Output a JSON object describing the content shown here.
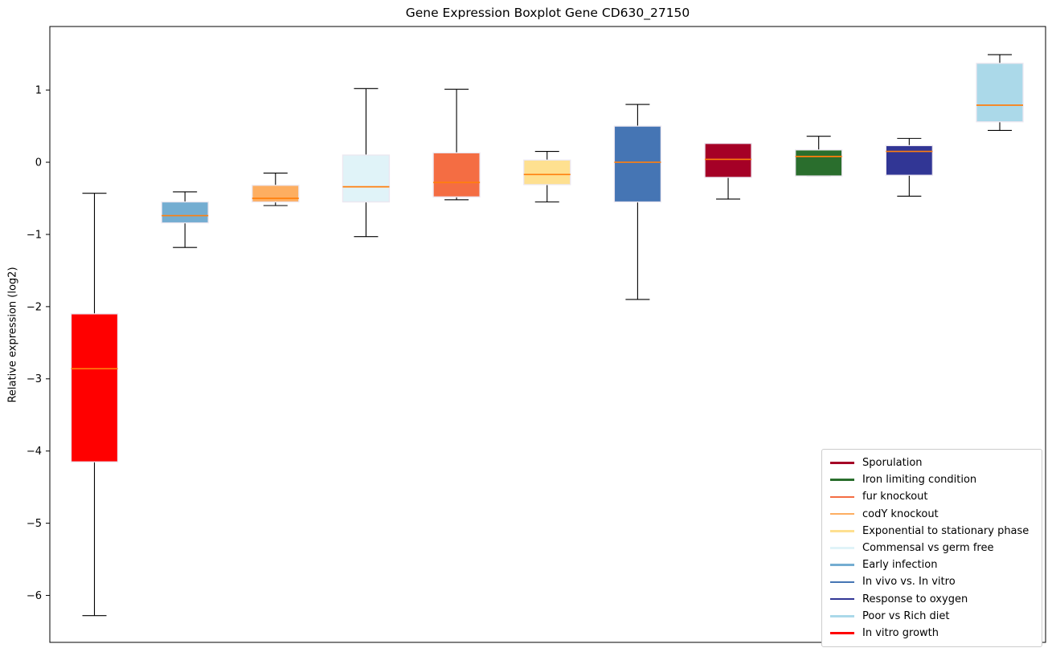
{
  "chart_data": {
    "type": "boxplot",
    "title": "Gene Expression Boxplot Gene CD630_27150",
    "ylabel": "Relative expression (log2)",
    "xlabel": "",
    "ylim": [
      -6.65,
      1.88
    ],
    "yticks": [
      1,
      0,
      -1,
      -2,
      -3,
      -4,
      -5,
      -6
    ],
    "grid": false,
    "legend_position": "lower right",
    "colors": {
      "median_line": "#ff7f0e",
      "whisker": "#000000",
      "box_edge": "#ece7f0",
      "spine": "#000000"
    },
    "series": [
      {
        "name": "In vitro growth",
        "color": "#ff0000",
        "whisker_low": -6.28,
        "q1": -4.15,
        "median": -2.86,
        "q3": -2.1,
        "whisker_high": -0.43
      },
      {
        "name": "Early infection",
        "color": "#74add1",
        "whisker_low": -1.18,
        "q1": -0.84,
        "median": -0.74,
        "q3": -0.55,
        "whisker_high": -0.41
      },
      {
        "name": "codY knockout",
        "color": "#fdae61",
        "whisker_low": -0.6,
        "q1": -0.55,
        "median": -0.5,
        "q3": -0.32,
        "whisker_high": -0.15
      },
      {
        "name": "Commensal vs germ free",
        "color": "#e0f3f8",
        "whisker_low": -1.03,
        "q1": -0.55,
        "median": -0.34,
        "q3": 0.1,
        "whisker_high": 1.02
      },
      {
        "name": "fur knockout",
        "color": "#f46d43",
        "whisker_low": -0.52,
        "q1": -0.48,
        "median": -0.28,
        "q3": 0.13,
        "whisker_high": 1.01
      },
      {
        "name": "Exponential to stationary phase",
        "color": "#fee090",
        "whisker_low": -0.55,
        "q1": -0.31,
        "median": -0.17,
        "q3": 0.03,
        "whisker_high": 0.15
      },
      {
        "name": "In vivo vs. In vitro",
        "color": "#4575b4",
        "whisker_low": -1.9,
        "q1": -0.55,
        "median": 0.0,
        "q3": 0.5,
        "whisker_high": 0.8
      },
      {
        "name": "Sporulation",
        "color": "#a50026",
        "whisker_low": -0.51,
        "q1": -0.21,
        "median": 0.04,
        "q3": 0.26,
        "whisker_high": 0.26
      },
      {
        "name": "Iron limiting condition",
        "color": "#2a6e2d",
        "whisker_low": -0.19,
        "q1": -0.19,
        "median": 0.08,
        "q3": 0.17,
        "whisker_high": 0.36
      },
      {
        "name": "Response to oxygen",
        "color": "#313695",
        "whisker_low": -0.47,
        "q1": -0.18,
        "median": 0.15,
        "q3": 0.23,
        "whisker_high": 0.33
      },
      {
        "name": "Poor vs Rich diet",
        "color": "#abd9e9",
        "whisker_low": 0.44,
        "q1": 0.56,
        "median": 0.79,
        "q3": 1.37,
        "whisker_high": 1.49
      }
    ],
    "legend": [
      {
        "label": "Sporulation",
        "color": "#a50026"
      },
      {
        "label": "Iron limiting condition",
        "color": "#2a6e2d"
      },
      {
        "label": "fur knockout",
        "color": "#f46d43"
      },
      {
        "label": "codY knockout",
        "color": "#fdae61"
      },
      {
        "label": "Exponential to stationary phase",
        "color": "#fee090"
      },
      {
        "label": "Commensal vs germ free",
        "color": "#e0f3f8"
      },
      {
        "label": "Early infection",
        "color": "#74add1"
      },
      {
        "label": "In vivo vs. In vitro",
        "color": "#4575b4"
      },
      {
        "label": "Response to oxygen",
        "color": "#313695"
      },
      {
        "label": "Poor vs Rich diet",
        "color": "#abd9e9"
      },
      {
        "label": "In vitro growth",
        "color": "#ff0000"
      }
    ]
  }
}
